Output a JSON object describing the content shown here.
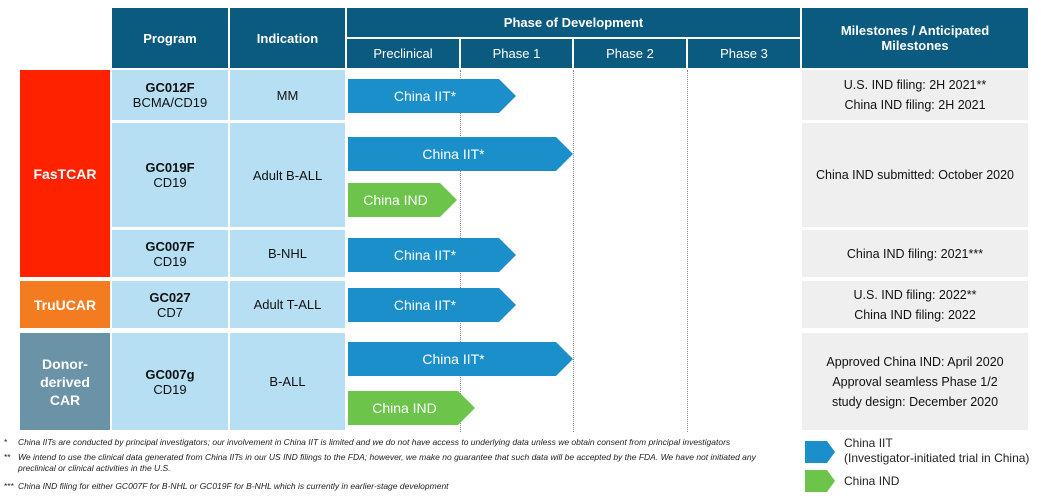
{
  "header": {
    "program": "Program",
    "indication": "Indication",
    "phase": "Phase of Development",
    "milestones": "Milestones / Anticipated Milestones",
    "phases": [
      "Preclinical",
      "Phase 1",
      "Phase 2",
      "Phase 3"
    ]
  },
  "groups": [
    {
      "label": "FasTCAR",
      "color": "#ff2200"
    },
    {
      "label": "TruUCAR",
      "color": "#f47c20"
    },
    {
      "label": "Donor-derived CAR",
      "color": "#6b93a7"
    }
  ],
  "rows": [
    {
      "program": "GC012F",
      "target": "BCMA/CD19",
      "indication": "MM",
      "arrows": [
        "China IIT*"
      ],
      "milestones": [
        "U.S. IND filing: 2H 2021**",
        "China IND filing: 2H 2021"
      ]
    },
    {
      "program": "GC019F",
      "target": "CD19",
      "indication": "Adult B-ALL",
      "arrows": [
        "China IIT*",
        "China IND"
      ],
      "milestones": [
        "China IND submitted: October 2020"
      ]
    },
    {
      "program": "GC007F",
      "target": "CD19",
      "indication": "B-NHL",
      "arrows": [
        "China IIT*"
      ],
      "milestones": [
        "China IND filing: 2021***"
      ]
    },
    {
      "program": "GC027",
      "target": "CD7",
      "indication": "Adult T-ALL",
      "arrows": [
        "China IIT*"
      ],
      "milestones": [
        "U.S. IND filing: 2022**",
        "China IND filing: 2022"
      ]
    },
    {
      "program": "GC007g",
      "target": "CD19",
      "indication": "B-ALL",
      "arrows": [
        "China IIT*",
        "China IND"
      ],
      "milestones": [
        "Approved China IND: April 2020",
        "Approval seamless Phase 1/2 study design: December 2020"
      ]
    }
  ],
  "footnotes": [
    {
      "mark": "*",
      "text": "China IITs are conducted by principal investigators; our involvement in China IIT is limited and we do not have access to underlying data unless we obtain consent from principal investigators"
    },
    {
      "mark": "**",
      "text": "We intend to use the clinical data generated from China IITs in our US IND filings to the FDA; however, we make no guarantee that such data will be accepted by the FDA. We have not initiated any preclinical or clinical activities in the U.S."
    },
    {
      "mark": "***",
      "text": "China IND filing for either GC007F for B-NHL or GC019F for B-NHL which is currently in earlier-stage development"
    }
  ],
  "legend": {
    "iit_title": "China IIT",
    "iit_sub": "(Investigator-initiated trial in China)",
    "ind": "China IND",
    "iit_color": "#1a8fca",
    "ind_color": "#6cc44b"
  }
}
